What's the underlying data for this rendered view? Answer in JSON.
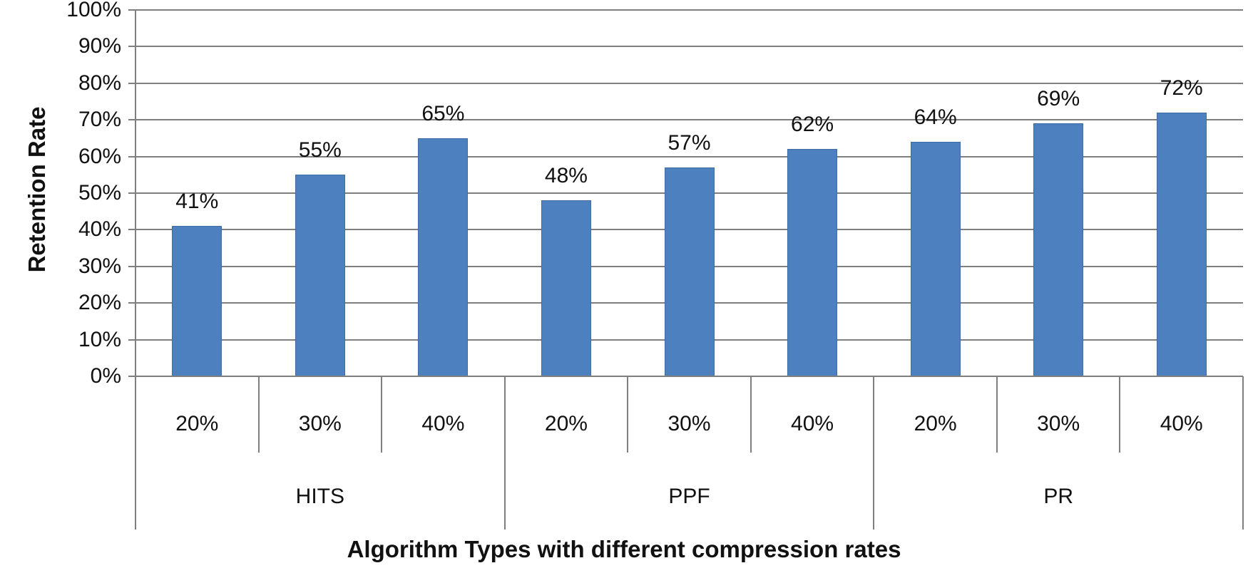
{
  "chart_data": {
    "type": "bar",
    "title": "",
    "xlabel": "Algorithm Types with different compression rates",
    "ylabel": "Retention Rate",
    "ylim": [
      0,
      100
    ],
    "ytick_step": 10,
    "ytick_labels": [
      "0%",
      "10%",
      "20%",
      "30%",
      "40%",
      "50%",
      "60%",
      "70%",
      "80%",
      "90%",
      "100%"
    ],
    "grid": true,
    "legend": "none",
    "bar_color": "#4C80BE",
    "bar_edge_color": "#3F6DA3",
    "gridline_color": "#7F7F7F",
    "text_color": "#111111",
    "background_color": "#FFFFFF",
    "categories": [
      "20%",
      "30%",
      "40%",
      "20%",
      "30%",
      "40%",
      "20%",
      "30%",
      "40%"
    ],
    "series": [
      {
        "name": "Retention Rate",
        "values": [
          41,
          55,
          65,
          48,
          57,
          62,
          64,
          69,
          72
        ]
      }
    ],
    "data_labels": [
      "41%",
      "55%",
      "65%",
      "48%",
      "57%",
      "62%",
      "64%",
      "69%",
      "72%"
    ],
    "groups": [
      {
        "label": "HITS",
        "categories": [
          "20%",
          "30%",
          "40%"
        ],
        "values": [
          41,
          55,
          65
        ],
        "data_labels": [
          "41%",
          "55%",
          "65%"
        ]
      },
      {
        "label": "PPF",
        "categories": [
          "20%",
          "30%",
          "40%"
        ],
        "values": [
          48,
          57,
          62
        ],
        "data_labels": [
          "48%",
          "57%",
          "62%"
        ]
      },
      {
        "label": "PR",
        "categories": [
          "20%",
          "30%",
          "40%"
        ],
        "values": [
          64,
          69,
          72
        ],
        "data_labels": [
          "64%",
          "69%",
          "72%"
        ]
      }
    ]
  }
}
